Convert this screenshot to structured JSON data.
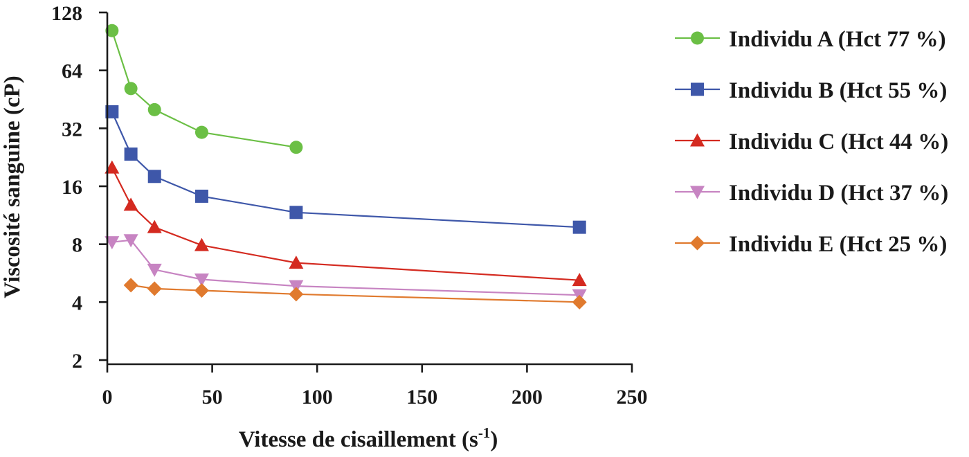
{
  "chart_data": {
    "type": "line",
    "xlabel_main": "Vitesse de cisaillement (s",
    "xlabel_sup": "-1",
    "xlabel_close": ")",
    "ylabel": "Viscosité sanguine (cP)",
    "xlim": [
      0,
      250
    ],
    "ylim": [
      2,
      128
    ],
    "y_scale": "log2",
    "x_ticks": [
      0,
      50,
      100,
      150,
      200,
      250
    ],
    "y_ticks": [
      2,
      4,
      8,
      16,
      32,
      64,
      128
    ],
    "legend_position": "right",
    "grid": false,
    "series": [
      {
        "name": "Individu A (Hct 77 %)",
        "color": "#6bbf45",
        "marker": "circle",
        "points": [
          [
            2.25,
            103
          ],
          [
            11.25,
            51.5
          ],
          [
            22.5,
            40
          ],
          [
            45,
            30.5
          ],
          [
            90,
            25.5
          ]
        ]
      },
      {
        "name": "Individu B (Hct 55 %)",
        "color": "#3e57a9",
        "marker": "square",
        "points": [
          [
            2.25,
            39
          ],
          [
            11.25,
            23.5
          ],
          [
            22.5,
            18
          ],
          [
            45,
            14.2
          ],
          [
            90,
            11.7
          ],
          [
            225,
            9.8
          ]
        ]
      },
      {
        "name": "Individu C (Hct 44 %)",
        "color": "#d42a20",
        "marker": "triangle-up",
        "points": [
          [
            2.25,
            20
          ],
          [
            11.25,
            12.8
          ],
          [
            22.5,
            9.8
          ],
          [
            45,
            7.9
          ],
          [
            90,
            6.4
          ],
          [
            225,
            5.2
          ]
        ]
      },
      {
        "name": "Individu D (Hct 37 %)",
        "color": "#c784c2",
        "marker": "triangle-down",
        "points": [
          [
            2.25,
            8.2
          ],
          [
            11.25,
            8.4
          ],
          [
            22.5,
            5.9
          ],
          [
            45,
            5.25
          ],
          [
            90,
            4.85
          ],
          [
            225,
            4.35
          ]
        ]
      },
      {
        "name": "Individu E (Hct 25 %)",
        "color": "#e07a2e",
        "marker": "diamond",
        "points": [
          [
            11.25,
            4.9
          ],
          [
            22.5,
            4.7
          ],
          [
            45,
            4.6
          ],
          [
            90,
            4.4
          ],
          [
            225,
            4.0
          ]
        ]
      }
    ]
  }
}
